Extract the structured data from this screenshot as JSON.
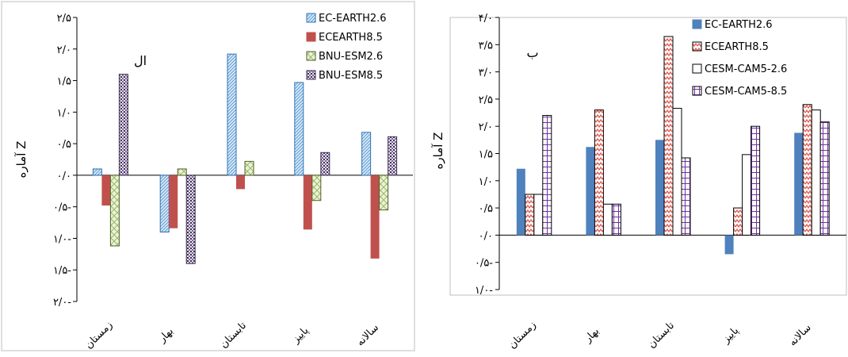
{
  "chart_data": [
    {
      "type": "bar",
      "panel_label": "ال",
      "ylabel": "آماره Z",
      "categories": [
        "زمستان",
        "بهار",
        "تابستان",
        "پاییز",
        "سالانه"
      ],
      "ylim": [
        -2.0,
        2.5
      ],
      "yticks": [
        -2.0,
        -1.5,
        -1.0,
        -0.5,
        0.0,
        0.5,
        1.0,
        1.5,
        2.0,
        2.5
      ],
      "ytick_labels": [
        "۲/۰-",
        "۱/۵-",
        "۱/۰-",
        "۰/۵-",
        "۰/۰",
        "۰/۵",
        "۱/۰",
        "۱/۵",
        "۲/۰",
        "۲/۵"
      ],
      "grid": false,
      "legend_position": "top-right",
      "series": [
        {
          "name": "EC-EARTH2.6",
          "color": "#9dc3e6",
          "pattern": "diag-blue",
          "values": [
            0.1,
            -0.9,
            1.92,
            1.47,
            0.68
          ]
        },
        {
          "name": "ECEARTH8.5",
          "color": "#c0504d",
          "pattern": "solid-red",
          "values": [
            -0.48,
            -0.84,
            -0.22,
            -0.86,
            -1.32
          ]
        },
        {
          "name": "BNU-ESM2.6",
          "color": "#c3d69b",
          "pattern": "cross-green",
          "values": [
            -1.12,
            0.1,
            0.22,
            -0.4,
            -0.55
          ]
        },
        {
          "name": "BNU-ESM8.5",
          "color": "#403152",
          "pattern": "dots-purple",
          "values": [
            1.6,
            -1.4,
            0.0,
            0.36,
            0.61
          ]
        }
      ]
    },
    {
      "type": "bar",
      "panel_label": "ب",
      "ylabel": "آماره Z",
      "categories": [
        "زمستان",
        "بهار",
        "تابستان",
        "پاییز",
        "سالانه"
      ],
      "ylim": [
        -1.0,
        4.0
      ],
      "yticks": [
        -1.0,
        -0.5,
        0.0,
        0.5,
        1.0,
        1.5,
        2.0,
        2.5,
        3.0,
        3.5,
        4.0
      ],
      "ytick_labels": [
        "۱/۰-",
        "۰/۵-",
        "۰/۰",
        "۰/۵",
        "۱/۰",
        "۱/۵",
        "۲/۰",
        "۲/۵",
        "۳/۰",
        "۳/۵",
        "۴/۰"
      ],
      "grid": false,
      "legend_position": "top-right",
      "series": [
        {
          "name": "EC-EARTH2.6",
          "color": "#4f81bd",
          "pattern": "solid-blue",
          "values": [
            1.22,
            1.62,
            1.75,
            -0.35,
            1.88
          ]
        },
        {
          "name": "ECEARTH8.5",
          "color": "#e05a4f",
          "pattern": "zigzag-red",
          "values": [
            0.75,
            2.3,
            3.65,
            0.5,
            2.4
          ]
        },
        {
          "name": "CESM-CAM5-2.6",
          "color": "#000000",
          "pattern": "hollow",
          "values": [
            0.75,
            0.57,
            2.33,
            1.48,
            2.3
          ]
        },
        {
          "name": "CESM-CAM5-8.5",
          "color": "#7030a0",
          "pattern": "grid-purple",
          "values": [
            2.2,
            0.57,
            1.42,
            2.0,
            2.08
          ]
        }
      ]
    }
  ]
}
